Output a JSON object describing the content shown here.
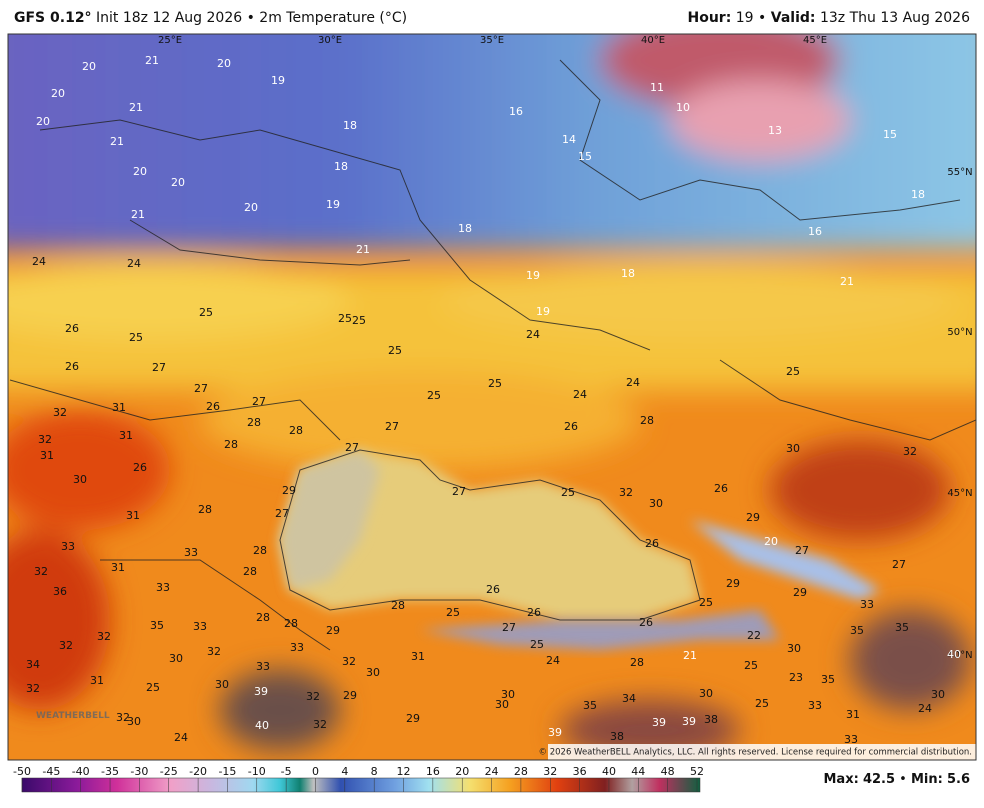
{
  "header": {
    "model": "GFS 0.12°",
    "init": "Init 18z 12 Aug 2026 • 2m Temperature (°C)",
    "hour_label": "Hour:",
    "hour": "19",
    "separator": "•",
    "valid_label": "Valid:",
    "valid": "13z Thu 13 Aug 2026"
  },
  "map": {
    "lon_labels": [
      "25°E",
      "30°E",
      "35°E",
      "40°E",
      "45°E"
    ],
    "lat_labels": [
      "55°N",
      "50°N",
      "45°N",
      "40°N"
    ],
    "temperatures": [
      20,
      21,
      20,
      19,
      20,
      21,
      20,
      18,
      16,
      11,
      10,
      13,
      15,
      14,
      15,
      21,
      20,
      20,
      18,
      19,
      20,
      21,
      18,
      18,
      16,
      21,
      19,
      18,
      21,
      19,
      24,
      24,
      25,
      25,
      25,
      26,
      25,
      24,
      25,
      26,
      27,
      27,
      25,
      25,
      24,
      24,
      25,
      32,
      31,
      26,
      27,
      28,
      31,
      32,
      28,
      28,
      27,
      27,
      26,
      28,
      30,
      32,
      31,
      26,
      30,
      29,
      27,
      25,
      32,
      30,
      26,
      31,
      28,
      27,
      33,
      33,
      28,
      26,
      29,
      20,
      27,
      27,
      32,
      28,
      31,
      33,
      36,
      29,
      29,
      26,
      28,
      25,
      26,
      25,
      33,
      35,
      33,
      28,
      28,
      29,
      27,
      26,
      35,
      35,
      32,
      32,
      33,
      25,
      22,
      30,
      40,
      30,
      32,
      32,
      31,
      24,
      21,
      28,
      25,
      34,
      33,
      30,
      23,
      35,
      31,
      32,
      25,
      30,
      39,
      32,
      29,
      30,
      34,
      30,
      25,
      30,
      35,
      30,
      33,
      24,
      31,
      32,
      30,
      29,
      39,
      39,
      38,
      40,
      32,
      39,
      38,
      33,
      24
    ],
    "credit": "© 2026 WeatherBELL Analytics, LLC. All rights reserved. License required for commercial distribution.",
    "logo": "WEATHERBELL"
  },
  "colorbar": {
    "ticks": [
      -50,
      -45,
      -40,
      -35,
      -30,
      -25,
      -20,
      -15,
      -10,
      -5,
      0,
      4,
      8,
      12,
      16,
      20,
      24,
      28,
      32,
      36,
      40,
      44,
      48,
      52
    ]
  },
  "footer": {
    "max_label": "Max:",
    "max": 42.5,
    "separator": "•",
    "min_label": "Min:",
    "min": 5.6
  }
}
